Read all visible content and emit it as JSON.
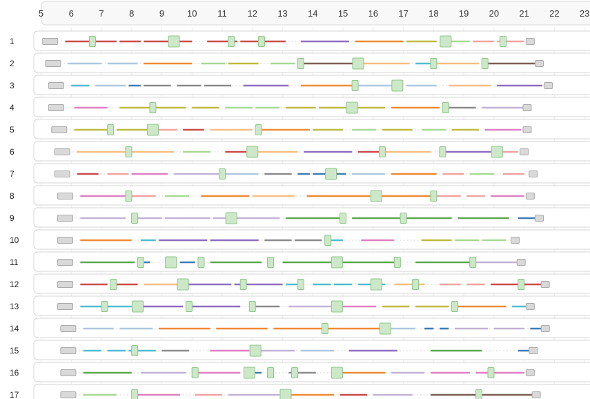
{
  "colors": {
    "marker_fill": "#cde8c8",
    "marker_stroke": "#8cc48a",
    "start_fill": "#d9d9d9",
    "start_stroke": "#aaaaaa",
    "palette": {
      "red": "#c94b48",
      "blue": "#aec7e0",
      "navy": "#3f7bb5",
      "orange": "#ef8a33",
      "green": "#5aa84e",
      "lightgreen": "#a8d992",
      "purple": "#8e6cc0",
      "brown": "#7d5f55",
      "pink": "#df7fc2",
      "gray": "#8a8a8a",
      "olive": "#bdba3c",
      "cyan": "#4fbcd0",
      "salmon": "#f2a1a0",
      "peach": "#f7be82",
      "lavender": "#c2b2d6"
    }
  },
  "chart_data": {
    "type": "gantt",
    "xlim": [
      4.6,
      23.5
    ],
    "x_ticks": [
      "5",
      "6",
      "7",
      "8",
      "9",
      "10",
      "11",
      "12",
      "13",
      "14",
      "15",
      "16",
      "17",
      "18",
      "19",
      "20",
      "21",
      "22",
      "23"
    ],
    "grid": true,
    "rows": [
      {
        "label": "1",
        "start": 5.3,
        "end": 21.2,
        "segments": [
          [
            "red",
            5.8,
            6.7
          ],
          [
            "red",
            6.8,
            7.5
          ],
          [
            "red",
            7.6,
            8.3
          ],
          [
            "red",
            8.4,
            10.0
          ],
          [
            "red",
            10.5,
            11.5
          ],
          [
            "red",
            11.6,
            13.1
          ],
          [
            "purple",
            13.6,
            15.2
          ],
          [
            "orange",
            15.4,
            17.0
          ],
          [
            "olive",
            17.1,
            18.1
          ],
          [
            "lightgreen",
            18.2,
            19.2
          ],
          [
            "salmon",
            19.3,
            20.0
          ],
          [
            "salmon",
            20.1,
            21.0
          ]
        ],
        "markers": [
          6.7,
          9.4,
          11.3,
          12.3,
          18.4,
          20.3
        ]
      },
      {
        "label": "2",
        "start": 5.4,
        "end": 21.5,
        "segments": [
          [
            "blue",
            5.9,
            7.0
          ],
          [
            "blue",
            7.2,
            8.2
          ],
          [
            "orange",
            8.4,
            10.0
          ],
          [
            "lightgreen",
            10.3,
            11.1
          ],
          [
            "olive",
            11.2,
            12.2
          ],
          [
            "lightgreen",
            12.6,
            13.4
          ],
          [
            "brown",
            13.5,
            15.4
          ],
          [
            "peach",
            15.6,
            17.2
          ],
          [
            "cyan",
            17.4,
            17.9
          ],
          [
            "peach",
            18.0,
            19.5
          ],
          [
            "brown",
            19.7,
            21.4
          ]
        ],
        "markers": [
          13.6,
          15.5,
          18.0,
          19.7
        ]
      },
      {
        "label": "3",
        "start": 5.5,
        "end": 21.8,
        "segments": [
          [
            "cyan",
            6.0,
            6.6
          ],
          [
            "blue",
            6.8,
            7.8
          ],
          [
            "navy",
            7.9,
            8.3
          ],
          [
            "gray",
            8.4,
            9.3
          ],
          [
            "gray",
            9.5,
            10.3
          ],
          [
            "gray",
            10.4,
            11.3
          ],
          [
            "purple",
            11.7,
            13.2
          ],
          [
            "orange",
            13.6,
            15.3
          ],
          [
            "blue",
            15.5,
            16.9
          ],
          [
            "blue",
            17.1,
            18.1
          ],
          [
            "peach",
            18.5,
            19.9
          ],
          [
            "purple",
            20.1,
            21.6
          ]
        ],
        "markers": [
          15.4,
          16.8
        ]
      },
      {
        "label": "4",
        "start": 5.5,
        "end": 21.1,
        "segments": [
          [
            "pink",
            6.1,
            7.2
          ],
          [
            "olive",
            7.6,
            8.6
          ],
          [
            "olive",
            8.8,
            9.8
          ],
          [
            "olive",
            10.0,
            10.9
          ],
          [
            "lightgreen",
            11.1,
            12.0
          ],
          [
            "lightgreen",
            12.1,
            12.9
          ],
          [
            "olive",
            13.1,
            14.1
          ],
          [
            "olive",
            14.2,
            15.1
          ],
          [
            "olive",
            15.4,
            16.4
          ],
          [
            "orange",
            16.6,
            18.2
          ],
          [
            "gray",
            18.5,
            19.4
          ],
          [
            "lavender",
            19.6,
            21.0
          ]
        ],
        "markers": [
          8.7,
          15.3,
          18.4
        ]
      },
      {
        "label": "5",
        "start": 5.6,
        "end": 21.1,
        "segments": [
          [
            "olive",
            6.1,
            7.4
          ],
          [
            "olive",
            7.5,
            8.6
          ],
          [
            "salmon",
            8.8,
            9.5
          ],
          [
            "red",
            9.7,
            10.4
          ],
          [
            "peach",
            10.6,
            12.0
          ],
          [
            "orange",
            12.2,
            13.9
          ],
          [
            "olive",
            14.0,
            15.0
          ],
          [
            "lightgreen",
            15.3,
            16.1
          ],
          [
            "olive",
            16.3,
            17.3
          ],
          [
            "lightgreen",
            17.6,
            18.4
          ],
          [
            "olive",
            18.6,
            19.5
          ],
          [
            "pink",
            19.7,
            20.9
          ]
        ],
        "markers": [
          7.3,
          8.7,
          12.2
        ]
      },
      {
        "label": "6",
        "start": 5.7,
        "end": 21.0,
        "segments": [
          [
            "peach",
            6.2,
            7.9
          ],
          [
            "peach",
            8.0,
            9.4
          ],
          [
            "lightgreen",
            9.7,
            10.6
          ],
          [
            "red",
            11.1,
            11.8
          ],
          [
            "peach",
            12.0,
            13.5
          ],
          [
            "purple",
            13.7,
            15.3
          ],
          [
            "red",
            15.5,
            16.2
          ],
          [
            "peach",
            16.4,
            17.9
          ],
          [
            "purple",
            18.2,
            19.9
          ],
          [
            "salmon",
            20.1,
            20.8
          ]
        ],
        "markers": [
          7.9,
          12.0,
          16.3,
          18.3,
          20.1
        ]
      },
      {
        "label": "7",
        "start": 5.7,
        "end": 21.3,
        "segments": [
          [
            "red",
            6.2,
            6.9
          ],
          [
            "salmon",
            7.2,
            7.9
          ],
          [
            "pink",
            8.0,
            9.2
          ],
          [
            "lavender",
            9.4,
            10.9
          ],
          [
            "blue",
            11.1,
            12.2
          ],
          [
            "gray",
            12.4,
            13.3
          ],
          [
            "navy",
            13.5,
            13.9
          ],
          [
            "navy",
            14.0,
            14.5
          ],
          [
            "navy",
            14.6,
            15.1
          ],
          [
            "blue",
            15.3,
            16.4
          ],
          [
            "orange",
            16.6,
            18.1
          ],
          [
            "salmon",
            18.3,
            19.0
          ],
          [
            "lightgreen",
            19.2,
            20.0
          ],
          [
            "salmon",
            20.3,
            21.0
          ]
        ],
        "markers": [
          11.0,
          14.6
        ]
      },
      {
        "label": "8",
        "start": 5.8,
        "end": 21.2,
        "segments": [
          [
            "pink",
            6.3,
            7.8
          ],
          [
            "salmon",
            8.0,
            8.8
          ],
          [
            "lightgreen",
            9.1,
            9.9
          ],
          [
            "orange",
            10.3,
            11.9
          ],
          [
            "peach",
            12.0,
            13.4
          ],
          [
            "orange",
            13.8,
            15.9
          ],
          [
            "orange",
            16.1,
            17.9
          ],
          [
            "salmon",
            18.1,
            18.9
          ],
          [
            "salmon",
            19.1,
            19.7
          ],
          [
            "pink",
            19.9,
            21.0
          ]
        ],
        "markers": [
          7.9,
          16.1,
          18.0
        ]
      },
      {
        "label": "9",
        "start": 5.8,
        "end": 21.5,
        "segments": [
          [
            "lavender",
            6.3,
            7.8
          ],
          [
            "lavender",
            8.0,
            9.0
          ],
          [
            "lavender",
            9.1,
            10.6
          ],
          [
            "lavender",
            10.7,
            12.9
          ],
          [
            "green",
            13.1,
            15.1
          ],
          [
            "green",
            15.3,
            16.9
          ],
          [
            "green",
            17.0,
            18.6
          ],
          [
            "green",
            18.8,
            20.5
          ],
          [
            "navy",
            20.8,
            21.4
          ]
        ],
        "markers": [
          8.1,
          11.3,
          15.0,
          17.0
        ]
      },
      {
        "label": "10",
        "start": 5.8,
        "end": 20.7,
        "segments": [
          [
            "orange",
            6.3,
            8.0
          ],
          [
            "cyan",
            8.3,
            8.8
          ],
          [
            "purple",
            8.9,
            10.5
          ],
          [
            "purple",
            10.6,
            12.2
          ],
          [
            "gray",
            12.4,
            13.3
          ],
          [
            "gray",
            13.4,
            14.3
          ],
          [
            "cyan",
            14.4,
            15.0
          ],
          [
            "pink",
            15.6,
            16.7
          ],
          [
            "olive",
            17.6,
            18.6
          ],
          [
            "lightgreen",
            18.7,
            19.5
          ],
          [
            "lightgreen",
            19.6,
            20.4
          ]
        ],
        "markers": [
          14.5
        ]
      },
      {
        "label": "11",
        "start": 5.8,
        "end": 20.9,
        "segments": [
          [
            "green",
            6.3,
            8.1
          ],
          [
            "navy",
            8.3,
            8.6
          ],
          [
            "navy",
            9.6,
            10.1
          ],
          [
            "green",
            10.6,
            12.3
          ],
          [
            "green",
            13.0,
            14.7
          ],
          [
            "green",
            14.9,
            16.7
          ],
          [
            "green",
            17.4,
            19.3
          ],
          [
            "lavender",
            19.4,
            20.8
          ]
        ],
        "markers": [
          8.3,
          9.3,
          10.3,
          12.6,
          14.8,
          16.8,
          19.3
        ]
      },
      {
        "label": "12",
        "start": 5.8,
        "end": 21.7,
        "segments": [
          [
            "red",
            6.3,
            7.2
          ],
          [
            "red",
            7.3,
            8.2
          ],
          [
            "peach",
            8.4,
            9.6
          ],
          [
            "purple",
            9.7,
            11.3
          ],
          [
            "purple",
            11.4,
            13.0
          ],
          [
            "cyan",
            13.1,
            13.7
          ],
          [
            "cyan",
            14.0,
            14.6
          ],
          [
            "cyan",
            14.7,
            15.3
          ],
          [
            "cyan",
            15.5,
            16.4
          ],
          [
            "peach",
            16.7,
            17.7
          ],
          [
            "salmon",
            18.2,
            18.9
          ],
          [
            "salmon",
            19.1,
            19.7
          ],
          [
            "red",
            19.9,
            21.6
          ]
        ],
        "markers": [
          7.4,
          9.7,
          11.7,
          13.6,
          16.1,
          17.4,
          20.9
        ]
      },
      {
        "label": "13",
        "start": 5.8,
        "end": 21.2,
        "segments": [
          [
            "cyan",
            6.3,
            7.1
          ],
          [
            "cyan",
            7.2,
            8.0
          ],
          [
            "purple",
            8.2,
            9.7
          ],
          [
            "purple",
            9.8,
            11.6
          ],
          [
            "gray",
            12.0,
            12.9
          ],
          [
            "lavender",
            13.2,
            14.6
          ],
          [
            "pink",
            14.8,
            16.1
          ],
          [
            "olive",
            16.3,
            17.2
          ],
          [
            "olive",
            17.4,
            18.5
          ],
          [
            "orange",
            18.6,
            20.4
          ],
          [
            "cyan",
            20.6,
            21.1
          ]
        ],
        "markers": [
          7.1,
          8.2,
          9.9,
          12.0,
          14.8,
          18.7
        ]
      },
      {
        "label": "14",
        "start": 5.9,
        "end": 21.7,
        "segments": [
          [
            "blue",
            6.4,
            7.4
          ],
          [
            "blue",
            7.6,
            8.7
          ],
          [
            "orange",
            8.9,
            10.6
          ],
          [
            "orange",
            10.8,
            12.5
          ],
          [
            "orange",
            12.7,
            14.4
          ],
          [
            "orange",
            14.5,
            16.3
          ],
          [
            "blue",
            16.4,
            17.4
          ],
          [
            "navy",
            17.7,
            18.0
          ],
          [
            "navy",
            18.2,
            18.5
          ],
          [
            "lavender",
            18.7,
            19.8
          ],
          [
            "lavender",
            20.0,
            21.0
          ],
          [
            "navy",
            21.2,
            21.6
          ]
        ],
        "markers": [
          14.4,
          16.4
        ]
      },
      {
        "label": "15",
        "start": 5.9,
        "end": 21.3,
        "segments": [
          [
            "cyan",
            6.4,
            7.0
          ],
          [
            "cyan",
            7.2,
            7.8
          ],
          [
            "cyan",
            7.9,
            8.8
          ],
          [
            "gray",
            9.0,
            9.9
          ],
          [
            "pink",
            10.6,
            11.9
          ],
          [
            "lavender",
            12.1,
            13.4
          ],
          [
            "blue",
            13.6,
            14.7
          ],
          [
            "purple",
            15.2,
            16.8
          ],
          [
            "green",
            17.9,
            19.6
          ],
          [
            "navy",
            20.8,
            21.2
          ]
        ],
        "markers": [
          8.1,
          12.1
        ]
      },
      {
        "label": "16",
        "start": 5.9,
        "end": 21.2,
        "segments": [
          [
            "green",
            6.4,
            8.0
          ],
          [
            "lavender",
            8.3,
            9.8
          ],
          [
            "pink",
            10.0,
            11.6
          ],
          [
            "navy",
            11.8,
            12.3
          ],
          [
            "gray",
            13.2,
            14.1
          ],
          [
            "orange",
            14.9,
            16.4
          ],
          [
            "lavender",
            16.6,
            17.7
          ],
          [
            "pink",
            17.9,
            19.2
          ],
          [
            "pink",
            19.4,
            21.0
          ]
        ],
        "markers": [
          10.1,
          11.9,
          12.6,
          13.4,
          14.8,
          19.9
        ]
      },
      {
        "label": "17",
        "start": 5.9,
        "end": 21.4,
        "segments": [
          [
            "lightgreen",
            6.4,
            7.5
          ],
          [
            "pink",
            8.2,
            9.6
          ],
          [
            "salmon",
            10.1,
            11.0
          ],
          [
            "lavender",
            11.2,
            12.9
          ],
          [
            "orange",
            13.1,
            14.7
          ],
          [
            "red",
            14.9,
            15.8
          ],
          [
            "lavender",
            16.0,
            17.3
          ],
          [
            "brown",
            17.9,
            19.4
          ],
          [
            "brown",
            19.6,
            21.3
          ]
        ],
        "markers": [
          8.1,
          13.1,
          19.5
        ]
      }
    ]
  }
}
